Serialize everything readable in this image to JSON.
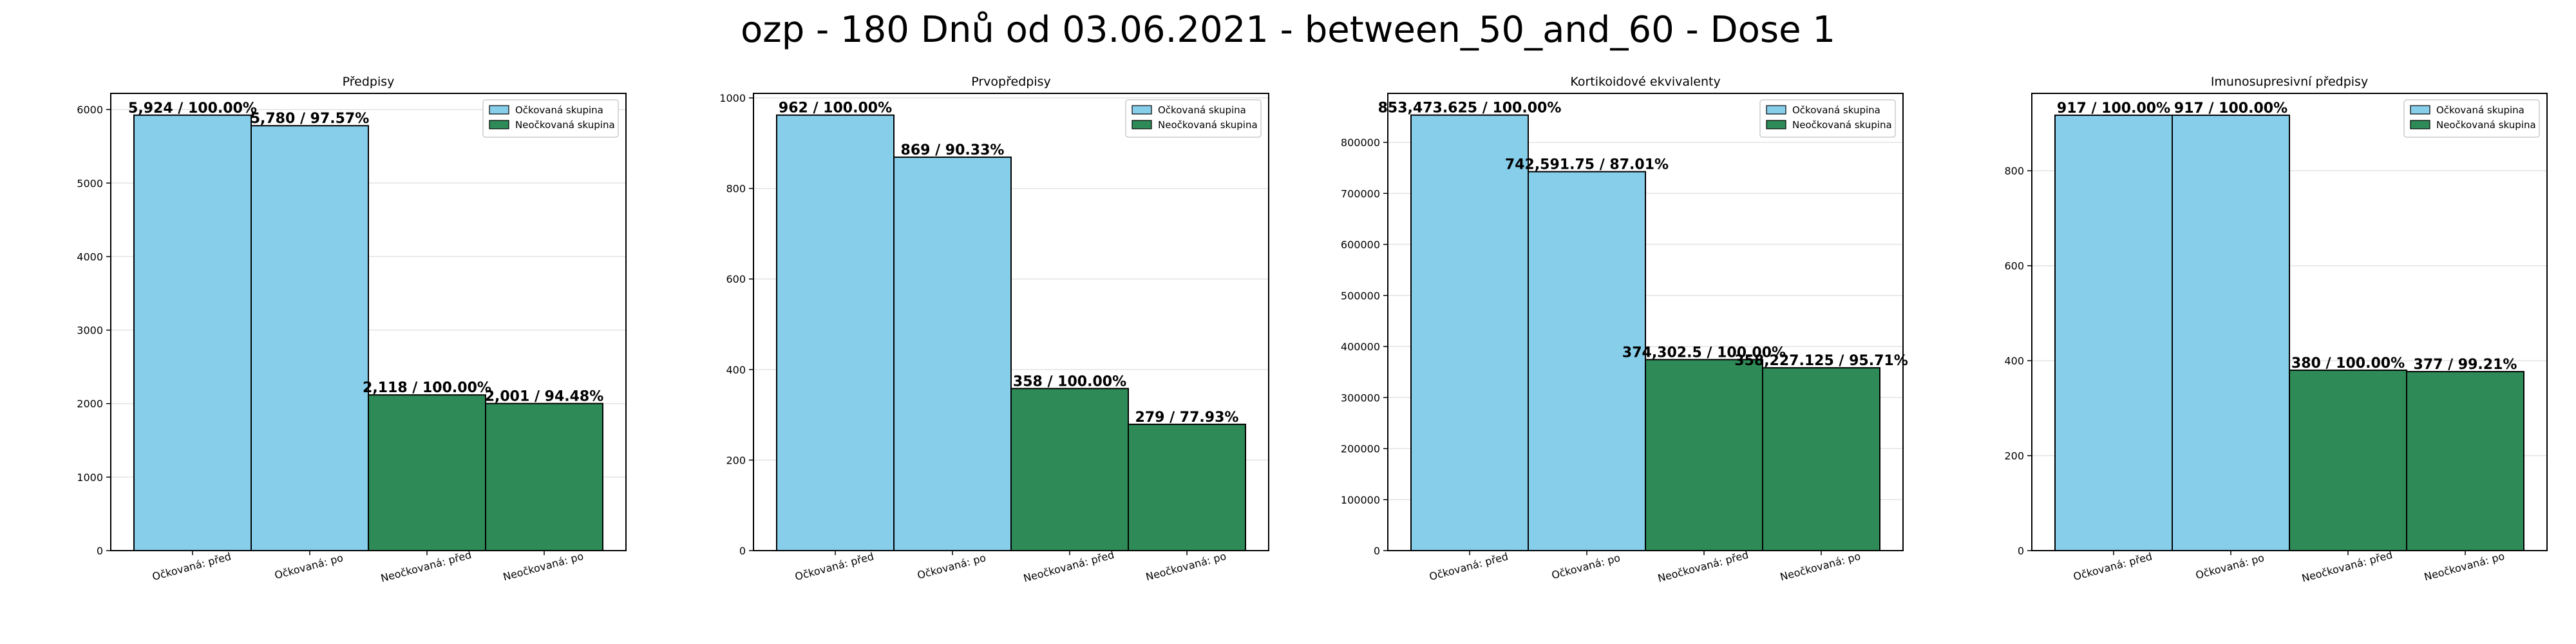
{
  "figure": {
    "suptitle": "ozp - 180 Dnů od 03.06.2021 - between_50_and_60 - Dose 1"
  },
  "colors": {
    "vaccinated": "#87CEEB",
    "unvaccinated": "#2E8B57"
  },
  "chart_data": [
    {
      "type": "bar",
      "title": "Předpisy",
      "categories": [
        "Očkovaná: před",
        "Očkovaná: po",
        "Neočkovaná: před",
        "Neočkovaná: po"
      ],
      "values": [
        5924,
        5780,
        2118,
        2001
      ],
      "labels": [
        "5,924 / 100.00%",
        "5,780 / 97.57%",
        "2,118 / 100.00%",
        "2,001 / 94.48%"
      ],
      "groups": [
        "vaccinated",
        "vaccinated",
        "unvaccinated",
        "unvaccinated"
      ],
      "legend": [
        "Očkovaná skupina",
        "Neočkovaná skupina"
      ],
      "legend_position": "top-right",
      "ylim": [
        0,
        6220
      ],
      "yticks": [
        0,
        1000,
        2000,
        3000,
        4000,
        5000,
        6000
      ],
      "ytick_labels": [
        "0",
        "1000",
        "2000",
        "3000",
        "4000",
        "5000",
        "6000"
      ],
      "grid": "y"
    },
    {
      "type": "bar",
      "title": "Prvopředpisy",
      "categories": [
        "Očkovaná: před",
        "Očkovaná: po",
        "Neočkovaná: před",
        "Neočkovaná: po"
      ],
      "values": [
        962,
        869,
        358,
        279
      ],
      "labels": [
        "962 / 100.00%",
        "869 / 90.33%",
        "358 / 100.00%",
        "279 / 77.93%"
      ],
      "groups": [
        "vaccinated",
        "vaccinated",
        "unvaccinated",
        "unvaccinated"
      ],
      "legend": [
        "Očkovaná skupina",
        "Neočkovaná skupina"
      ],
      "legend_position": "top-right",
      "ylim": [
        0,
        1010
      ],
      "yticks": [
        0,
        200,
        400,
        600,
        800,
        1000
      ],
      "ytick_labels": [
        "0",
        "200",
        "400",
        "600",
        "800",
        "1000"
      ],
      "grid": "y"
    },
    {
      "type": "bar",
      "title": "Kortikoidové ekvivalenty",
      "categories": [
        "Očkovaná: před",
        "Očkovaná: po",
        "Neočkovaná: před",
        "Neočkovaná: po"
      ],
      "values": [
        853473.625,
        742591.75,
        374302.5,
        358227.125
      ],
      "labels": [
        "853,473.625 / 100.00%",
        "742,591.75 / 87.01%",
        "374,302.5 / 100.00%",
        "358,227.125 / 95.71%"
      ],
      "groups": [
        "vaccinated",
        "vaccinated",
        "unvaccinated",
        "unvaccinated"
      ],
      "legend": [
        "Očkovaná skupina",
        "Neočkovaná skupina"
      ],
      "legend_position": "top-right",
      "ylim": [
        0,
        896000
      ],
      "yticks": [
        0,
        100000,
        200000,
        300000,
        400000,
        500000,
        600000,
        700000,
        800000
      ],
      "ytick_labels": [
        "0",
        "100000",
        "200000",
        "300000",
        "400000",
        "500000",
        "600000",
        "700000",
        "800000"
      ],
      "grid": "y"
    },
    {
      "type": "bar",
      "title": "Imunosupresivní předpisy",
      "categories": [
        "Očkovaná: před",
        "Očkovaná: po",
        "Neočkovaná: před",
        "Neočkovaná: po"
      ],
      "values": [
        917,
        917,
        380,
        377
      ],
      "labels": [
        "917 / 100.00%",
        "917 / 100.00%",
        "380 / 100.00%",
        "377 / 99.21%"
      ],
      "groups": [
        "vaccinated",
        "vaccinated",
        "unvaccinated",
        "unvaccinated"
      ],
      "legend": [
        "Očkovaná skupina",
        "Neočkovaná skupina"
      ],
      "legend_position": "top-right",
      "ylim": [
        0,
        963
      ],
      "yticks": [
        0,
        200,
        400,
        600,
        800
      ],
      "ytick_labels": [
        "0",
        "200",
        "400",
        "600",
        "800"
      ],
      "grid": "y"
    }
  ]
}
